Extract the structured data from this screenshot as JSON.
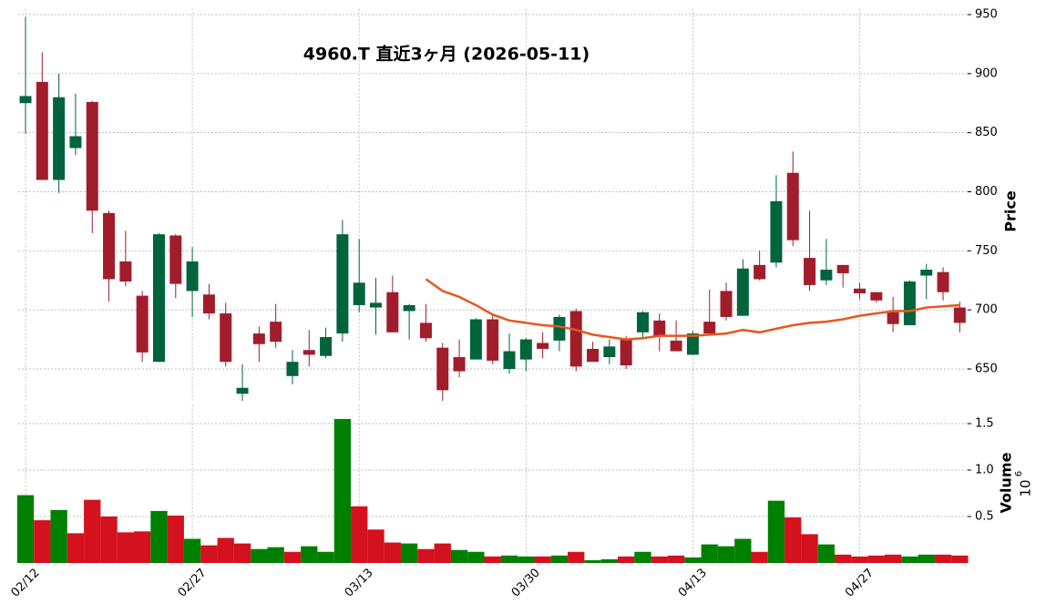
{
  "chart_data": [
    {
      "type": "candlestick",
      "title": "4960.T 直近3ヶ月 (2026-05-11)",
      "ylabel": "Price",
      "categories": [
        "02/12",
        null,
        null,
        null,
        null,
        null,
        null,
        null,
        null,
        null,
        "02/27",
        null,
        null,
        null,
        null,
        null,
        null,
        null,
        null,
        null,
        "03/13",
        null,
        null,
        null,
        null,
        null,
        null,
        null,
        null,
        null,
        "03/30",
        null,
        null,
        null,
        null,
        null,
        null,
        null,
        null,
        null,
        "04/13",
        null,
        null,
        null,
        null,
        null,
        null,
        null,
        null,
        null,
        "04/27",
        null,
        null,
        null,
        null,
        null,
        null
      ],
      "open": [
        875,
        893,
        810,
        837,
        876,
        782,
        741,
        712,
        656,
        763,
        716,
        713,
        697,
        629,
        680,
        690,
        644,
        666,
        661,
        680,
        704,
        702,
        715,
        699,
        689,
        668,
        660,
        658,
        692,
        650,
        658,
        672,
        674,
        699,
        667,
        660,
        675,
        681,
        691,
        674,
        662,
        690,
        716,
        695,
        738,
        740,
        816,
        744,
        725,
        738,
        718,
        715,
        698,
        687,
        729,
        732,
        702
      ],
      "high": [
        948,
        918,
        900,
        883,
        877,
        784,
        767,
        716,
        765,
        764,
        753,
        722,
        706,
        654,
        686,
        705,
        666,
        683,
        685,
        776,
        760,
        727,
        729,
        705,
        705,
        672,
        675,
        693,
        696,
        680,
        676,
        681,
        696,
        701,
        673,
        675,
        678,
        699,
        697,
        691,
        682,
        717,
        723,
        743,
        750,
        814,
        834,
        784,
        760,
        738,
        723,
        715,
        711,
        725,
        739,
        736,
        707
      ],
      "low": [
        849,
        810,
        799,
        831,
        765,
        707,
        720,
        656,
        656,
        710,
        694,
        692,
        652,
        623,
        656,
        668,
        637,
        652,
        659,
        673,
        698,
        679,
        681,
        675,
        673,
        623,
        643,
        658,
        654,
        646,
        648,
        659,
        665,
        648,
        656,
        654,
        650,
        676,
        665,
        665,
        662,
        679,
        691,
        695,
        725,
        736,
        754,
        716,
        721,
        719,
        709,
        706,
        681,
        687,
        709,
        708,
        681
      ],
      "close": [
        881,
        810,
        880,
        847,
        784,
        726,
        724,
        664,
        764,
        722,
        741,
        697,
        656,
        634,
        671,
        673,
        656,
        662,
        677,
        764,
        723,
        706,
        681,
        704,
        676,
        632,
        648,
        692,
        657,
        665,
        675,
        667,
        694,
        652,
        656,
        669,
        653,
        698,
        678,
        665,
        680,
        680,
        694,
        735,
        726,
        792,
        759,
        721,
        734,
        731,
        714,
        708,
        688,
        724,
        734,
        715,
        689
      ],
      "up_color": "#00643c",
      "down_color": "#a11d2b",
      "ma": {
        "color": "#e8561e",
        "values": [
          null,
          null,
          null,
          null,
          null,
          null,
          null,
          null,
          null,
          null,
          null,
          null,
          null,
          null,
          null,
          null,
          null,
          null,
          null,
          null,
          null,
          null,
          null,
          null,
          726,
          716,
          711,
          704,
          696,
          691,
          689,
          687,
          686,
          683,
          679,
          677,
          675,
          676,
          678,
          678,
          678,
          679,
          680,
          683,
          681,
          684,
          687,
          689,
          690,
          692,
          695,
          697,
          699,
          699,
          702,
          703,
          704
        ]
      },
      "ylim": [
        622,
        955
      ],
      "yticks": [
        650,
        700,
        750,
        800,
        850,
        900,
        950
      ],
      "grid": true
    },
    {
      "type": "bar",
      "ylabel": "Volume",
      "y_multiplier": {
        "base": "10",
        "exponent": "6"
      },
      "values": [
        0.73,
        0.46,
        0.57,
        0.32,
        0.68,
        0.5,
        0.33,
        0.34,
        0.56,
        0.51,
        0.26,
        0.19,
        0.27,
        0.21,
        0.15,
        0.17,
        0.12,
        0.18,
        0.12,
        1.55,
        0.61,
        0.36,
        0.22,
        0.21,
        0.15,
        0.21,
        0.14,
        0.12,
        0.07,
        0.08,
        0.07,
        0.07,
        0.08,
        0.12,
        0.03,
        0.04,
        0.07,
        0.12,
        0.07,
        0.08,
        0.06,
        0.2,
        0.18,
        0.26,
        0.12,
        0.67,
        0.49,
        0.31,
        0.2,
        0.09,
        0.07,
        0.08,
        0.09,
        0.07,
        0.09,
        0.09,
        0.08
      ],
      "up_color": "#008000",
      "down_color": "#d4111e",
      "ylim": [
        0,
        1.7
      ],
      "yticks": [
        0.5,
        {
          "value": 1,
          "label": "1.0"
        },
        1.5
      ],
      "grid": true
    }
  ]
}
